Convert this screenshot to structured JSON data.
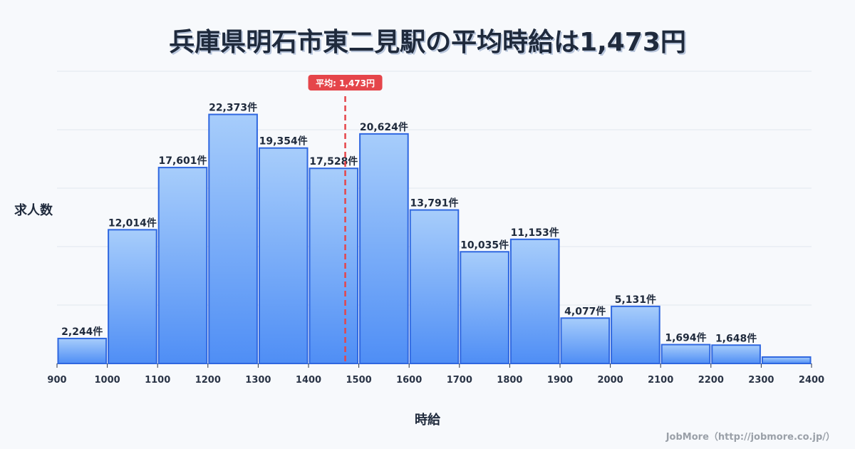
{
  "title": "兵庫県明石市東二見駅の平均時給は1,473円",
  "y_axis_label": "求人数",
  "x_axis_label": "時給",
  "credit": "JobMore（http://jobmore.co.jp/）",
  "average": {
    "value": 1473,
    "label": "平均: 1,473円",
    "color": "#e5454a"
  },
  "colors": {
    "bar_top": "#a7cdfb",
    "bar_bottom": "#4f8ef5",
    "bar_border": "#2f67e0"
  },
  "chart_data": {
    "type": "bar",
    "title": "兵庫県明石市東二見駅の平均時給は1,473円",
    "xlabel": "時給",
    "ylabel": "求人数",
    "bin_edges": [
      900,
      1000,
      1100,
      1200,
      1300,
      1400,
      1500,
      1600,
      1700,
      1800,
      1900,
      2000,
      2100,
      2200,
      2300,
      2400
    ],
    "categories": [
      "900-1000",
      "1000-1100",
      "1100-1200",
      "1200-1300",
      "1300-1400",
      "1400-1500",
      "1500-1600",
      "1600-1700",
      "1700-1800",
      "1800-1900",
      "1900-2000",
      "2000-2100",
      "2100-2200",
      "2200-2300",
      "2300-2400"
    ],
    "values": [
      2244,
      12014,
      17601,
      22373,
      19354,
      17528,
      20624,
      13791,
      10035,
      11153,
      4077,
      5131,
      1694,
      1648,
      580
    ],
    "labels": [
      "2,244件",
      "12,014件",
      "17,601件",
      "22,373件",
      "19,354件",
      "17,528件",
      "20,624件",
      "13,791件",
      "10,035件",
      "11,153件",
      "4,077件",
      "5,131件",
      "1,694件",
      "1,648件",
      ""
    ],
    "xticks": [
      "900",
      "1000",
      "1100",
      "1200",
      "1300",
      "1400",
      "1500",
      "1600",
      "1700",
      "1800",
      "1900",
      "2000",
      "2100",
      "2200",
      "2300",
      "2400"
    ],
    "ylim": [
      0,
      26250
    ],
    "grid": true,
    "annotation": {
      "type": "vline",
      "x": 1473,
      "label": "平均: 1,473円"
    }
  }
}
